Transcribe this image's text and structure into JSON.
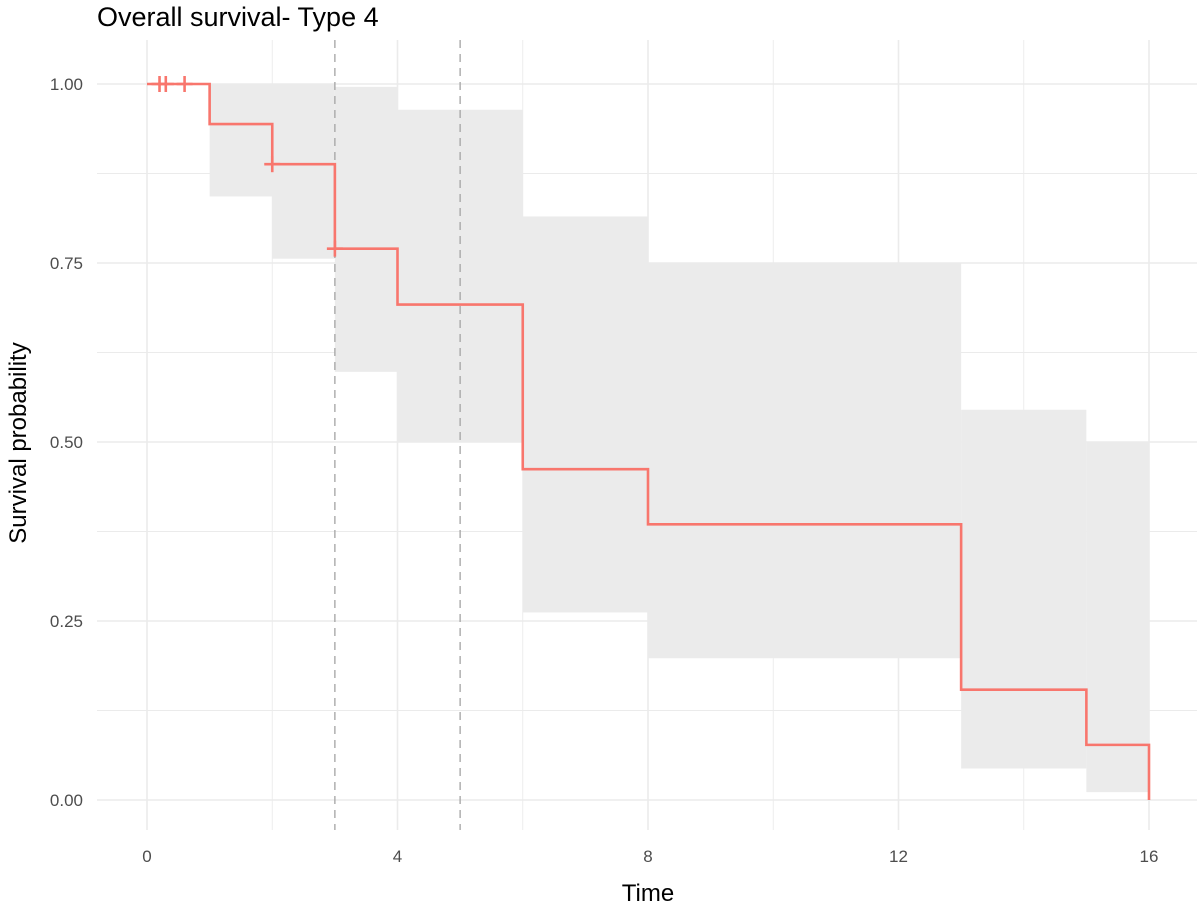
{
  "chart_data": {
    "type": "line",
    "subtype": "kaplan-meier step curve with confidence band",
    "title": "Overall survival- Type 4",
    "xlabel": "Time",
    "ylabel": "Survival probability",
    "xlim": [
      0,
      16
    ],
    "ylim": [
      0,
      1
    ],
    "x_ticks": [
      0,
      4,
      8,
      12,
      16
    ],
    "y_ticks": [
      0,
      0.25,
      0.5,
      0.75,
      1
    ],
    "y_tick_labels": [
      "0.00",
      "0.25",
      "0.50",
      "0.75",
      "1.00"
    ],
    "grid": true,
    "legend": "none",
    "colors": {
      "curve": "#f8766d",
      "band": "#ebebeb",
      "grid": "#ebebeb",
      "reference": "#a9a9a9"
    },
    "series": [
      {
        "steps": [
          {
            "x": 0,
            "survival": 1.0,
            "lower": 1.0,
            "upper": 1.0
          },
          {
            "x": 1,
            "survival": 0.944,
            "lower": 0.843,
            "upper": 1.0
          },
          {
            "x": 2,
            "survival": 0.888,
            "lower": 0.756,
            "upper": 1.0
          },
          {
            "x": 3,
            "survival": 0.77,
            "lower": 0.598,
            "upper": 0.996
          },
          {
            "x": 4,
            "survival": 0.692,
            "lower": 0.5,
            "upper": 0.964
          },
          {
            "x": 6,
            "survival": 0.462,
            "lower": 0.262,
            "upper": 0.815
          },
          {
            "x": 8,
            "survival": 0.385,
            "lower": 0.198,
            "upper": 0.75
          },
          {
            "x": 13,
            "survival": 0.154,
            "lower": 0.044,
            "upper": 0.545
          },
          {
            "x": 15,
            "survival": 0.077,
            "lower": 0.011,
            "upper": 0.5
          },
          {
            "x": 16,
            "survival": 0.0,
            "lower": 0.0,
            "upper": 0.0
          }
        ],
        "censored": [
          {
            "x": 0.2,
            "y": 1.0
          },
          {
            "x": 0.3,
            "y": 1.0
          },
          {
            "x": 0.6,
            "y": 1.0
          },
          {
            "x": 2.0,
            "y": 0.888
          },
          {
            "x": 3.0,
            "y": 0.77
          }
        ]
      }
    ],
    "reference_lines": [
      {
        "axis": "x",
        "value": 3,
        "style": "dashed"
      },
      {
        "axis": "x",
        "value": 5,
        "style": "dashed"
      }
    ]
  }
}
